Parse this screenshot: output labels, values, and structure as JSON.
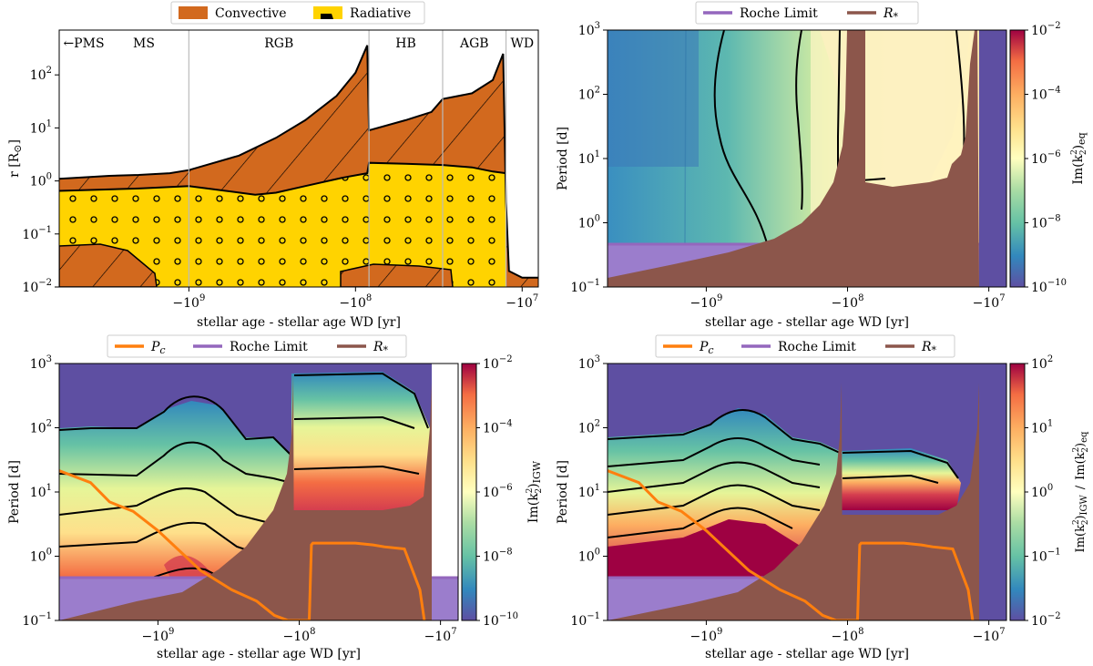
{
  "legends": {
    "top_left": {
      "items": [
        {
          "label": "Convective",
          "color": "#d2691e"
        },
        {
          "label": "Radiative",
          "color": "#ffd300"
        }
      ]
    },
    "top_right": {
      "items": [
        {
          "label": "Roche Limit",
          "color": "#9467bd"
        },
        {
          "label": "R",
          "sub": "*",
          "color": "#8c564b"
        }
      ]
    },
    "bottom": {
      "items": [
        {
          "label": "P",
          "sub": "c",
          "color": "#ff7f0e"
        },
        {
          "label": "Roche Limit",
          "color": "#9467bd"
        },
        {
          "label": "R",
          "sub": "*",
          "color": "#8c564b"
        }
      ]
    }
  },
  "chart_data": [
    {
      "type": "area",
      "panel": "top-left",
      "xlabel": "stellar age - stellar age WD [yr]",
      "ylabel": "r [R",
      "ylabel_sym": "⊙",
      "ylabel_end": "]",
      "x_ticks": [
        {
          "base": "−10",
          "exp": "9",
          "value": -1000000000.0
        },
        {
          "base": "−10",
          "exp": "8",
          "value": -100000000.0
        },
        {
          "base": "−10",
          "exp": "7",
          "value": -10000000.0
        }
      ],
      "y_ticks": [
        {
          "base": "10",
          "exp": "−2",
          "value": 0.01
        },
        {
          "base": "10",
          "exp": "−1",
          "value": 0.1
        },
        {
          "base": "10",
          "exp": "0",
          "value": 1
        },
        {
          "base": "10",
          "exp": "1",
          "value": 10
        },
        {
          "base": "10",
          "exp": "2",
          "value": 100
        }
      ],
      "phases": [
        "←PMS",
        "MS",
        "RGB",
        "HB",
        "AGB",
        "WD"
      ],
      "phase_boundaries": [
        -1000000000.0,
        -83000000.0,
        -30000000.0,
        -12500000.0
      ],
      "ylim": [
        0.01,
        700
      ],
      "log_x": true,
      "log_y": true,
      "series": [
        {
          "name": "Convective",
          "boundary": "stellar radius",
          "x": [
            -6000000000.0,
            -3000000000.0,
            -2000000000.0,
            -1300000000.0,
            -1000000000.0,
            -500000000.0,
            -300000000.0,
            -200000000.0,
            -130000000.0,
            -100000000.0,
            -85000000.0,
            -83000000.0,
            -50000000.0,
            -35000000.0,
            -30000000.0,
            -20000000.0,
            -15000000.0,
            -13000000.0,
            -12500000.0,
            -12000000.0,
            -10000000.0,
            -8000000.0
          ],
          "y": [
            1.1,
            1.25,
            1.3,
            1.4,
            1.6,
            3.0,
            6.5,
            14,
            40,
            110,
            360,
            9,
            14,
            20,
            35,
            45,
            80,
            250,
            0.4,
            0.02,
            0.015,
            0.015
          ]
        },
        {
          "name": "Radiative",
          "boundary": "convective/radiative boundary",
          "x": [
            -6000000000.0,
            -2000000000.0,
            -1000000000.0,
            -600000000.0,
            -400000000.0,
            -300000000.0,
            -200000000.0,
            -120000000.0,
            -85000000.0,
            -83000000.0,
            -50000000.0,
            -30000000.0,
            -20000000.0,
            -15000000.0,
            -12500000.0
          ],
          "y": [
            0.65,
            0.72,
            0.8,
            0.65,
            0.55,
            0.6,
            0.8,
            1.15,
            1.4,
            2.2,
            2.1,
            2.0,
            1.8,
            1.5,
            1.4
          ]
        }
      ]
    },
    {
      "type": "heatmap",
      "panel": "top-right",
      "xlabel": "stellar age - stellar age WD [yr]",
      "ylabel": "Period [d]",
      "colorbar_label": "Im(k",
      "colorbar_sub": "2",
      "colorbar_sup": "2",
      "colorbar_end": ")",
      "colorbar_subscript": "eq",
      "colorbar_ticks": [
        {
          "base": "10",
          "exp": "−2",
          "value": 0.01
        },
        {
          "base": "10",
          "exp": "−4",
          "value": 0.0001
        },
        {
          "base": "10",
          "exp": "−6",
          "value": 1e-06
        },
        {
          "base": "10",
          "exp": "−8",
          "value": 1e-08
        },
        {
          "base": "10",
          "exp": "−10",
          "value": 1e-10
        }
      ],
      "x_ticks": [
        {
          "base": "−10",
          "exp": "9",
          "value": -1000000000.0
        },
        {
          "base": "−10",
          "exp": "8",
          "value": -100000000.0
        },
        {
          "base": "−10",
          "exp": "7",
          "value": -10000000.0
        }
      ],
      "y_ticks": [
        {
          "base": "10",
          "exp": "−1",
          "value": 0.1
        },
        {
          "base": "10",
          "exp": "0",
          "value": 1
        },
        {
          "base": "10",
          "exp": "1",
          "value": 10
        },
        {
          "base": "10",
          "exp": "2",
          "value": 100
        },
        {
          "base": "10",
          "exp": "3",
          "value": 1000
        }
      ],
      "ylim": [
        0.1,
        1000
      ],
      "roche_limit_period_d": 0.45
    },
    {
      "type": "heatmap",
      "panel": "bottom-left",
      "xlabel": "stellar age - stellar age WD [yr]",
      "ylabel": "Period [d]",
      "colorbar_label": "Im(k",
      "colorbar_sub": "2",
      "colorbar_sup": "2",
      "colorbar_end": ")",
      "colorbar_subscript": "IGW",
      "colorbar_ticks": [
        {
          "base": "10",
          "exp": "−2",
          "value": 0.01
        },
        {
          "base": "10",
          "exp": "−4",
          "value": 0.0001
        },
        {
          "base": "10",
          "exp": "−6",
          "value": 1e-06
        },
        {
          "base": "10",
          "exp": "−8",
          "value": 1e-08
        },
        {
          "base": "10",
          "exp": "−10",
          "value": 1e-10
        }
      ],
      "x_ticks": [
        {
          "base": "−10",
          "exp": "9",
          "value": -1000000000.0
        },
        {
          "base": "−10",
          "exp": "8",
          "value": -100000000.0
        },
        {
          "base": "−10",
          "exp": "7",
          "value": -10000000.0
        }
      ],
      "y_ticks": [
        {
          "base": "10",
          "exp": "−1",
          "value": 0.1
        },
        {
          "base": "10",
          "exp": "0",
          "value": 1
        },
        {
          "base": "10",
          "exp": "1",
          "value": 10
        },
        {
          "base": "10",
          "exp": "2",
          "value": 100
        },
        {
          "base": "10",
          "exp": "3",
          "value": 1000
        }
      ],
      "ylim": [
        0.1,
        1000
      ],
      "roche_limit_period_d": 0.45,
      "Pc": {
        "x": [
          -6000000000.0,
          -3000000000.0,
          -2200000000.0,
          -1500000000.0,
          -1000000000.0,
          -700000000.0,
          -500000000.0,
          -300000000.0,
          -200000000.0,
          -150000000.0,
          -120000000.0,
          -100000000.0,
          -90000000.0,
          -85000000.0,
          -82000000.0,
          -80000000.0,
          -60000000.0,
          -40000000.0,
          -30000000.0,
          -25000000.0,
          -18000000.0,
          -14000000.0,
          -13000000.0
        ],
        "y": [
          25,
          14,
          7,
          5,
          2.5,
          1.2,
          0.6,
          0.3,
          0.2,
          0.12,
          0.1,
          0.1,
          0.1,
          0.1,
          1.5,
          1.6,
          1.6,
          1.6,
          1.5,
          1.4,
          1.3,
          0.3,
          0.1
        ]
      }
    },
    {
      "type": "heatmap",
      "panel": "bottom-right",
      "xlabel": "stellar age - stellar age WD [yr]",
      "ylabel": "Period [d]",
      "colorbar_label": "Im(k",
      "colorbar_sub": "2",
      "colorbar_sup": "2",
      "colorbar_end": ")",
      "colorbar_subscript": "IGW",
      "colorbar_label_b": "Im(k",
      "colorbar_sub_b": "2",
      "colorbar_sup_b": "2",
      "colorbar_end_b": ")",
      "colorbar_subscript_b": "eq",
      "colorbar_slash": "/",
      "colorbar_ticks": [
        {
          "base": "10",
          "exp": "2",
          "value": 100
        },
        {
          "base": "10",
          "exp": "1",
          "value": 10
        },
        {
          "base": "10",
          "exp": "0",
          "value": 1
        },
        {
          "base": "10",
          "exp": "−1",
          "value": 0.1
        },
        {
          "base": "10",
          "exp": "−2",
          "value": 0.01
        }
      ],
      "x_ticks": [
        {
          "base": "−10",
          "exp": "9",
          "value": -1000000000.0
        },
        {
          "base": "−10",
          "exp": "8",
          "value": -100000000.0
        },
        {
          "base": "−10",
          "exp": "7",
          "value": -10000000.0
        }
      ],
      "y_ticks": [
        {
          "base": "10",
          "exp": "−1",
          "value": 0.1
        },
        {
          "base": "10",
          "exp": "0",
          "value": 1
        },
        {
          "base": "10",
          "exp": "1",
          "value": 10
        },
        {
          "base": "10",
          "exp": "2",
          "value": 100
        },
        {
          "base": "10",
          "exp": "3",
          "value": 1000
        }
      ],
      "ylim": [
        0.1,
        1000
      ],
      "roche_limit_period_d": 0.45,
      "Pc": {
        "x": [
          -6000000000.0,
          -3000000000.0,
          -2200000000.0,
          -1500000000.0,
          -1000000000.0,
          -700000000.0,
          -500000000.0,
          -300000000.0,
          -200000000.0,
          -150000000.0,
          -120000000.0,
          -100000000.0,
          -90000000.0,
          -85000000.0,
          -82000000.0,
          -80000000.0,
          -60000000.0,
          -40000000.0,
          -30000000.0,
          -25000000.0,
          -18000000.0,
          -14000000.0,
          -13000000.0
        ],
        "y": [
          25,
          14,
          7,
          5,
          2.5,
          1.2,
          0.6,
          0.3,
          0.2,
          0.12,
          0.1,
          0.1,
          0.1,
          0.1,
          1.5,
          1.6,
          1.6,
          1.6,
          1.5,
          1.4,
          1.3,
          0.3,
          0.1
        ]
      }
    }
  ]
}
